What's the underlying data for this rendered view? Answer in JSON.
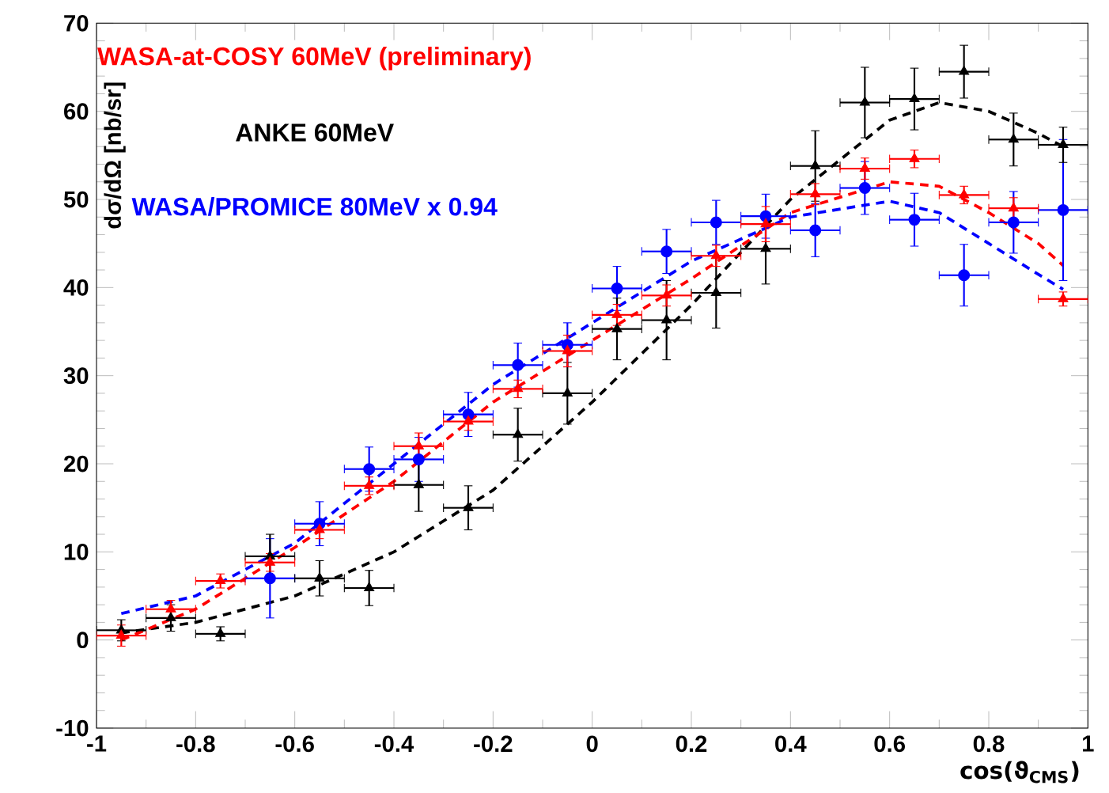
{
  "chart_data": {
    "type": "scatter",
    "xlabel": "cos(ϑ$_{CMS}$)",
    "ylabel": "dσ/dΩ [nb/sr]",
    "xlim": [
      -1,
      1
    ],
    "ylim": [
      -10,
      70
    ],
    "xticks": [
      -1,
      -0.8,
      -0.6,
      -0.4,
      -0.2,
      0,
      0.2,
      0.4,
      0.6,
      0.8,
      1
    ],
    "yticks": [
      -10,
      0,
      10,
      20,
      30,
      40,
      50,
      60,
      70
    ],
    "grid": false,
    "legend": "top left",
    "series": [
      {
        "name": "WASA-at-COSY 60MeV (preliminary)",
        "color": "#ff0000",
        "marker": "triangle",
        "x": [
          -0.95,
          -0.85,
          -0.75,
          -0.65,
          -0.55,
          -0.45,
          -0.35,
          -0.25,
          -0.15,
          -0.05,
          0.05,
          0.15,
          0.25,
          0.35,
          0.45,
          0.55,
          0.65,
          0.75,
          0.85,
          0.95
        ],
        "values": [
          0.5,
          3.5,
          6.7,
          8.8,
          12.5,
          17.5,
          22,
          24.8,
          28.5,
          32.8,
          36.9,
          39.1,
          43.6,
          47.2,
          50.6,
          53.5,
          54.6,
          50.5,
          49,
          38.7
        ],
        "errors": [
          1.2,
          1,
          0.8,
          1,
          1,
          1,
          1.5,
          1,
          1,
          1.8,
          1.2,
          1.2,
          1.2,
          2,
          1.2,
          1.2,
          1,
          1,
          1.2,
          0.8
        ],
        "xerrors": [
          0.05,
          0.05,
          0.05,
          0.05,
          0.05,
          0.05,
          0.05,
          0.05,
          0.05,
          0.05,
          0.05,
          0.05,
          0.05,
          0.05,
          0.05,
          0.05,
          0.05,
          0.05,
          0.05,
          0.05
        ]
      },
      {
        "name": "ANKE 60MeV",
        "color": "#000000",
        "marker": "triangle",
        "x": [
          -0.95,
          -0.85,
          -0.75,
          -0.65,
          -0.55,
          -0.45,
          -0.35,
          -0.25,
          -0.15,
          -0.05,
          0.05,
          0.15,
          0.25,
          0.35,
          0.45,
          0.55,
          0.65,
          0.75,
          0.85,
          0.95
        ],
        "values": [
          1.1,
          2.5,
          0.7,
          9.5,
          7,
          5.9,
          17.6,
          15,
          23.3,
          28,
          35.3,
          36.3,
          39.4,
          44.4,
          53.8,
          61,
          61.4,
          64.5,
          56.8,
          56.2
        ],
        "errors": [
          1.2,
          1.5,
          0.8,
          2.5,
          2,
          2,
          3,
          2.5,
          3,
          3.5,
          3.5,
          4.5,
          4,
          4,
          4,
          4,
          3.5,
          3,
          3,
          2
        ],
        "xerrors": [
          0.05,
          0.05,
          0.05,
          0.05,
          0.05,
          0.05,
          0.05,
          0.05,
          0.05,
          0.05,
          0.05,
          0.05,
          0.05,
          0.05,
          0.05,
          0.05,
          0.05,
          0.05,
          0.05,
          0.05
        ]
      },
      {
        "name": "WASA/PROMICE 80MeV x 0.94",
        "color": "#0000ff",
        "marker": "circle",
        "x": [
          -0.65,
          -0.55,
          -0.45,
          -0.35,
          -0.25,
          -0.15,
          -0.05,
          0.05,
          0.15,
          0.25,
          0.35,
          0.45,
          0.55,
          0.65,
          0.75,
          0.85,
          0.95
        ],
        "values": [
          7,
          13.2,
          19.4,
          20.5,
          25.6,
          31.2,
          33.5,
          39.9,
          44.1,
          47.4,
          48.1,
          46.5,
          51.3,
          47.7,
          41.4,
          47.4,
          48.8
        ],
        "errors": [
          4.5,
          2.5,
          2.5,
          2.5,
          2.5,
          2.5,
          2.5,
          2.5,
          2.5,
          2.5,
          2.5,
          3,
          3,
          3,
          3.5,
          3.5,
          8
        ],
        "xerrors": [
          0.05,
          0.05,
          0.05,
          0.05,
          0.05,
          0.05,
          0.05,
          0.05,
          0.05,
          0.05,
          0.05,
          0.05,
          0.05,
          0.05,
          0.05,
          0.05,
          0.05
        ]
      },
      {
        "type": "line",
        "color": "#000000",
        "line_style": "dashed",
        "marker": "none",
        "x": [
          -0.95,
          -0.8,
          -0.6,
          -0.4,
          -0.2,
          0,
          0.2,
          0.4,
          0.6,
          0.7,
          0.8,
          0.9,
          0.95
        ],
        "values": [
          0.8,
          2,
          5,
          10,
          17,
          27,
          38,
          50,
          59,
          61,
          60,
          57.5,
          56
        ]
      },
      {
        "type": "line",
        "color": "#ff0000",
        "line_style": "dashed",
        "marker": "none",
        "x": [
          -0.95,
          -0.8,
          -0.6,
          -0.4,
          -0.2,
          0,
          0.2,
          0.4,
          0.6,
          0.7,
          0.8,
          0.9,
          0.95
        ],
        "values": [
          0,
          3.5,
          10.5,
          18,
          27,
          34,
          41,
          48.5,
          52,
          51.5,
          48.5,
          45,
          42.5
        ]
      },
      {
        "type": "line",
        "color": "#0000ff",
        "line_style": "dashed",
        "marker": "none",
        "x": [
          -0.95,
          -0.8,
          -0.6,
          -0.4,
          -0.2,
          0,
          0.2,
          0.4,
          0.6,
          0.7,
          0.8,
          0.9,
          0.95
        ],
        "values": [
          3,
          5,
          11,
          20,
          29,
          36,
          43,
          48,
          49.8,
          48.5,
          45,
          41.5,
          39.8
        ]
      }
    ]
  }
}
